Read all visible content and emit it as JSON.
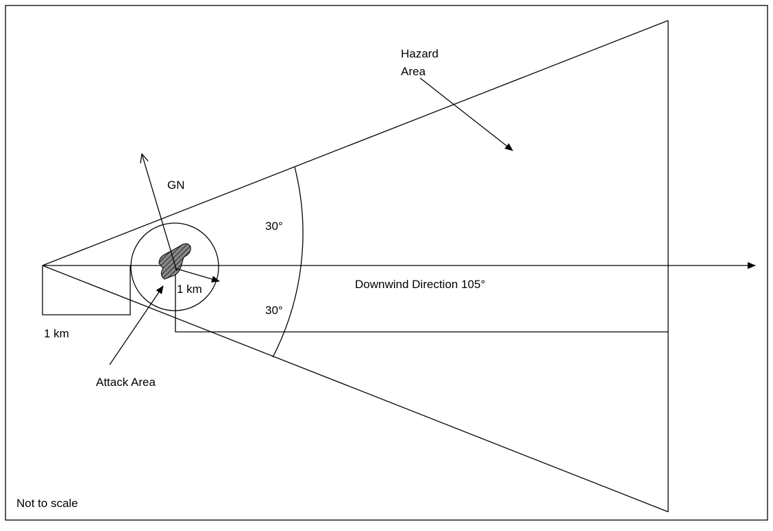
{
  "labels": {
    "hazard_area": [
      "Hazard",
      "Area"
    ],
    "grid_north": "GN",
    "angle_upper": "30°",
    "angle_lower": "30°",
    "radius": "1 km",
    "downwind": "Downwind Direction 105°",
    "offset": "1 km",
    "attack_area": "Attack Area",
    "note": "Not to scale"
  }
}
